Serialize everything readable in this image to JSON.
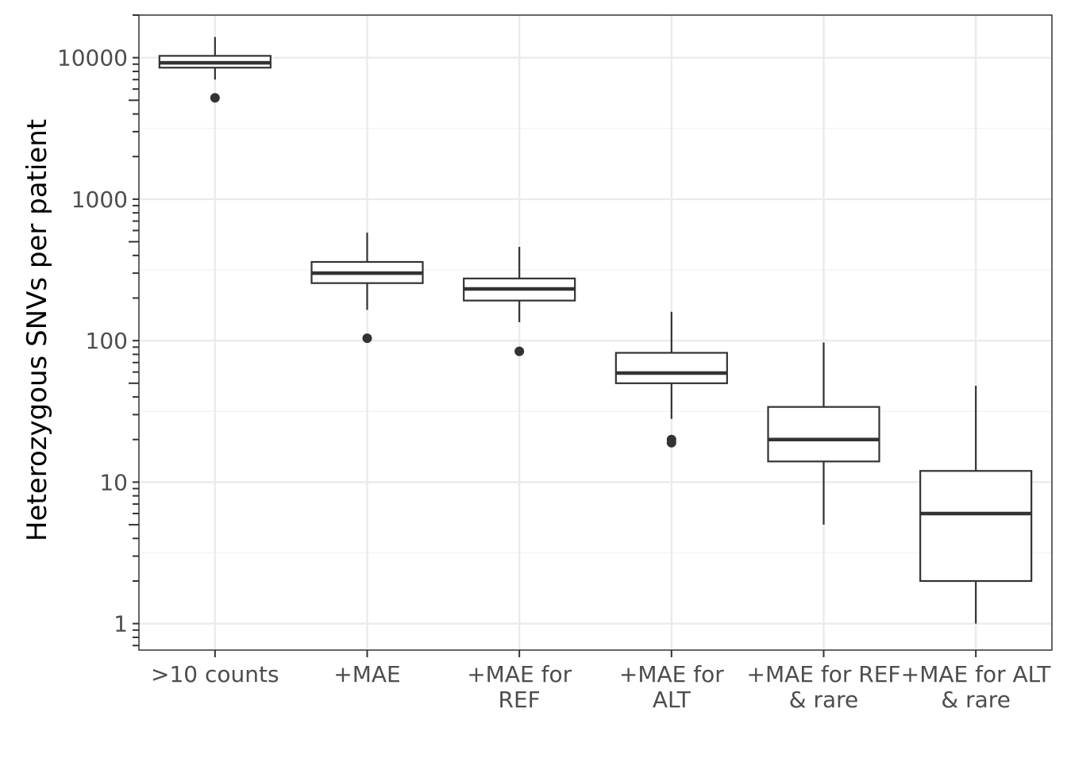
{
  "chart_data": {
    "type": "boxplot",
    "title": "",
    "xlabel": "",
    "ylabel": "Heterozygous SNVs per patient",
    "y_scale": "log10",
    "ylim": [
      0.65,
      20000
    ],
    "y_ticks": [
      1,
      10,
      100,
      1000,
      10000
    ],
    "y_tick_labels": [
      "1",
      "10",
      "100",
      "1000",
      "10000"
    ],
    "grid": true,
    "legend": "none",
    "categories": [
      ">10 counts\n",
      "+MAE\n",
      "+MAE for\nREF",
      "+MAE for\nALT",
      "+MAE for REF\n& rare",
      "+MAE for ALT\n& rare"
    ],
    "boxes": [
      {
        "whisker_low": 7000,
        "q1": 8500,
        "median": 9200,
        "q3": 10300,
        "whisker_high": 14000,
        "outliers": [
          5200
        ]
      },
      {
        "whisker_low": 165,
        "q1": 255,
        "median": 300,
        "q3": 360,
        "whisker_high": 580,
        "outliers": [
          104
        ]
      },
      {
        "whisker_low": 135,
        "q1": 192,
        "median": 232,
        "q3": 275,
        "whisker_high": 460,
        "outliers": [
          84
        ]
      },
      {
        "whisker_low": 28,
        "q1": 50,
        "median": 59,
        "q3": 82,
        "whisker_high": 160,
        "outliers": [
          19,
          20
        ]
      },
      {
        "whisker_low": 5,
        "q1": 14,
        "median": 20,
        "q3": 34,
        "whisker_high": 97,
        "outliers": []
      },
      {
        "whisker_low": 1,
        "q1": 2,
        "median": 6,
        "q3": 12,
        "whisker_high": 48,
        "outliers": []
      }
    ],
    "colors": {
      "box_stroke": "#333333",
      "box_fill": "#ffffff",
      "grid_major": "#ebebeb",
      "grid_minor": "#f2f2f2",
      "panel_border": "#333333",
      "tick_text": "#4d4d4d",
      "axis_title": "#000000"
    }
  }
}
